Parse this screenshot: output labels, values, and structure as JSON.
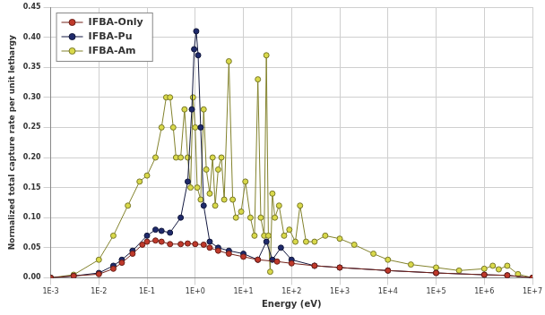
{
  "chart_data": {
    "type": "line",
    "x_label": "Energy (eV)",
    "y_label": "Normalized total capture rate per unit lethargy",
    "log": "x",
    "grid": true,
    "legend": "top-left",
    "marker": "circle",
    "xlim": [
      0.001,
      10000000
    ],
    "xticks": [
      {
        "value": 0.001,
        "label": "1E-3"
      },
      {
        "value": 0.01,
        "label": "1E-2"
      },
      {
        "value": 0.1,
        "label": "1E-1"
      },
      {
        "value": 1,
        "label": "1E+0"
      },
      {
        "value": 10,
        "label": "1E+1"
      },
      {
        "value": 100,
        "label": "1E+2"
      },
      {
        "value": 1000,
        "label": "1E+3"
      },
      {
        "value": 10000,
        "label": "1E+4"
      },
      {
        "value": 100000,
        "label": "1E+5"
      },
      {
        "value": 1000000,
        "label": "1E+6"
      },
      {
        "value": 10000000,
        "label": "1E+7"
      }
    ],
    "ylim": [
      0,
      0.45
    ],
    "yticks": [
      {
        "value": 0,
        "label": "0.00"
      },
      {
        "value": 0.05,
        "label": "0.05"
      },
      {
        "value": 0.1,
        "label": "0.10"
      },
      {
        "value": 0.15,
        "label": "0.15"
      },
      {
        "value": 0.2,
        "label": "0.20"
      },
      {
        "value": 0.25,
        "label": "0.25"
      },
      {
        "value": 0.3,
        "label": "0.30"
      },
      {
        "value": 0.35,
        "label": "0.35"
      },
      {
        "value": 0.4,
        "label": "0.40"
      },
      {
        "value": 0.45,
        "label": "0.45"
      }
    ],
    "series": [
      {
        "name": "IFBA-Only",
        "color": "#c0392b",
        "x": [
          0.001,
          0.003,
          0.01,
          0.02,
          0.03,
          0.05,
          0.08,
          0.1,
          0.15,
          0.2,
          0.3,
          0.5,
          0.7,
          1,
          1.5,
          2,
          3,
          5,
          10,
          20,
          50,
          100,
          300,
          1000,
          10000,
          100000,
          1000000,
          3000000,
          10000000
        ],
        "values": [
          0,
          0.003,
          0.006,
          0.015,
          0.025,
          0.04,
          0.055,
          0.06,
          0.062,
          0.06,
          0.056,
          0.056,
          0.057,
          0.056,
          0.055,
          0.05,
          0.045,
          0.04,
          0.035,
          0.03,
          0.027,
          0.024,
          0.02,
          0.017,
          0.012,
          0.008,
          0.005,
          0.004,
          0
        ]
      },
      {
        "name": "IFBA-Pu",
        "color": "#1f2a6b",
        "x": [
          0.001,
          0.003,
          0.01,
          0.02,
          0.03,
          0.05,
          0.1,
          0.15,
          0.2,
          0.3,
          0.5,
          0.7,
          0.85,
          0.95,
          1.05,
          1.15,
          1.3,
          1.5,
          2,
          3,
          5,
          10,
          20,
          30,
          40,
          60,
          100,
          300,
          1000,
          10000,
          100000,
          1000000,
          3000000,
          10000000
        ],
        "values": [
          0,
          0.003,
          0.008,
          0.02,
          0.03,
          0.045,
          0.07,
          0.08,
          0.078,
          0.075,
          0.1,
          0.16,
          0.28,
          0.38,
          0.41,
          0.37,
          0.25,
          0.12,
          0.06,
          0.05,
          0.045,
          0.04,
          0.03,
          0.06,
          0.03,
          0.05,
          0.03,
          0.02,
          0.017,
          0.012,
          0.008,
          0.005,
          0.004,
          0
        ]
      },
      {
        "name": "IFBA-Am",
        "color": "#d9d94a",
        "x": [
          0.001,
          0.003,
          0.01,
          0.02,
          0.04,
          0.07,
          0.1,
          0.15,
          0.2,
          0.25,
          0.3,
          0.35,
          0.4,
          0.5,
          0.6,
          0.7,
          0.8,
          0.9,
          1.0,
          1.1,
          1.3,
          1.5,
          1.7,
          2,
          2.3,
          2.6,
          3,
          3.5,
          4,
          5,
          6,
          7,
          9,
          11,
          14,
          17,
          20,
          23,
          27,
          30,
          33,
          36,
          40,
          45,
          55,
          70,
          90,
          120,
          150,
          200,
          300,
          500,
          1000,
          2000,
          5000,
          10000,
          30000,
          100000,
          300000,
          1000000,
          1500000,
          2000000,
          3000000,
          5000000,
          10000000
        ],
        "values": [
          0,
          0.005,
          0.03,
          0.07,
          0.12,
          0.16,
          0.17,
          0.2,
          0.25,
          0.3,
          0.3,
          0.25,
          0.2,
          0.2,
          0.28,
          0.2,
          0.15,
          0.3,
          0.25,
          0.15,
          0.13,
          0.28,
          0.18,
          0.14,
          0.2,
          0.12,
          0.18,
          0.2,
          0.13,
          0.36,
          0.13,
          0.1,
          0.11,
          0.16,
          0.1,
          0.07,
          0.33,
          0.1,
          0.07,
          0.37,
          0.07,
          0.01,
          0.14,
          0.1,
          0.12,
          0.07,
          0.08,
          0.06,
          0.12,
          0.06,
          0.06,
          0.07,
          0.065,
          0.055,
          0.04,
          0.03,
          0.022,
          0.017,
          0.012,
          0.015,
          0.02,
          0.014,
          0.02,
          0.006,
          0
        ]
      }
    ]
  }
}
